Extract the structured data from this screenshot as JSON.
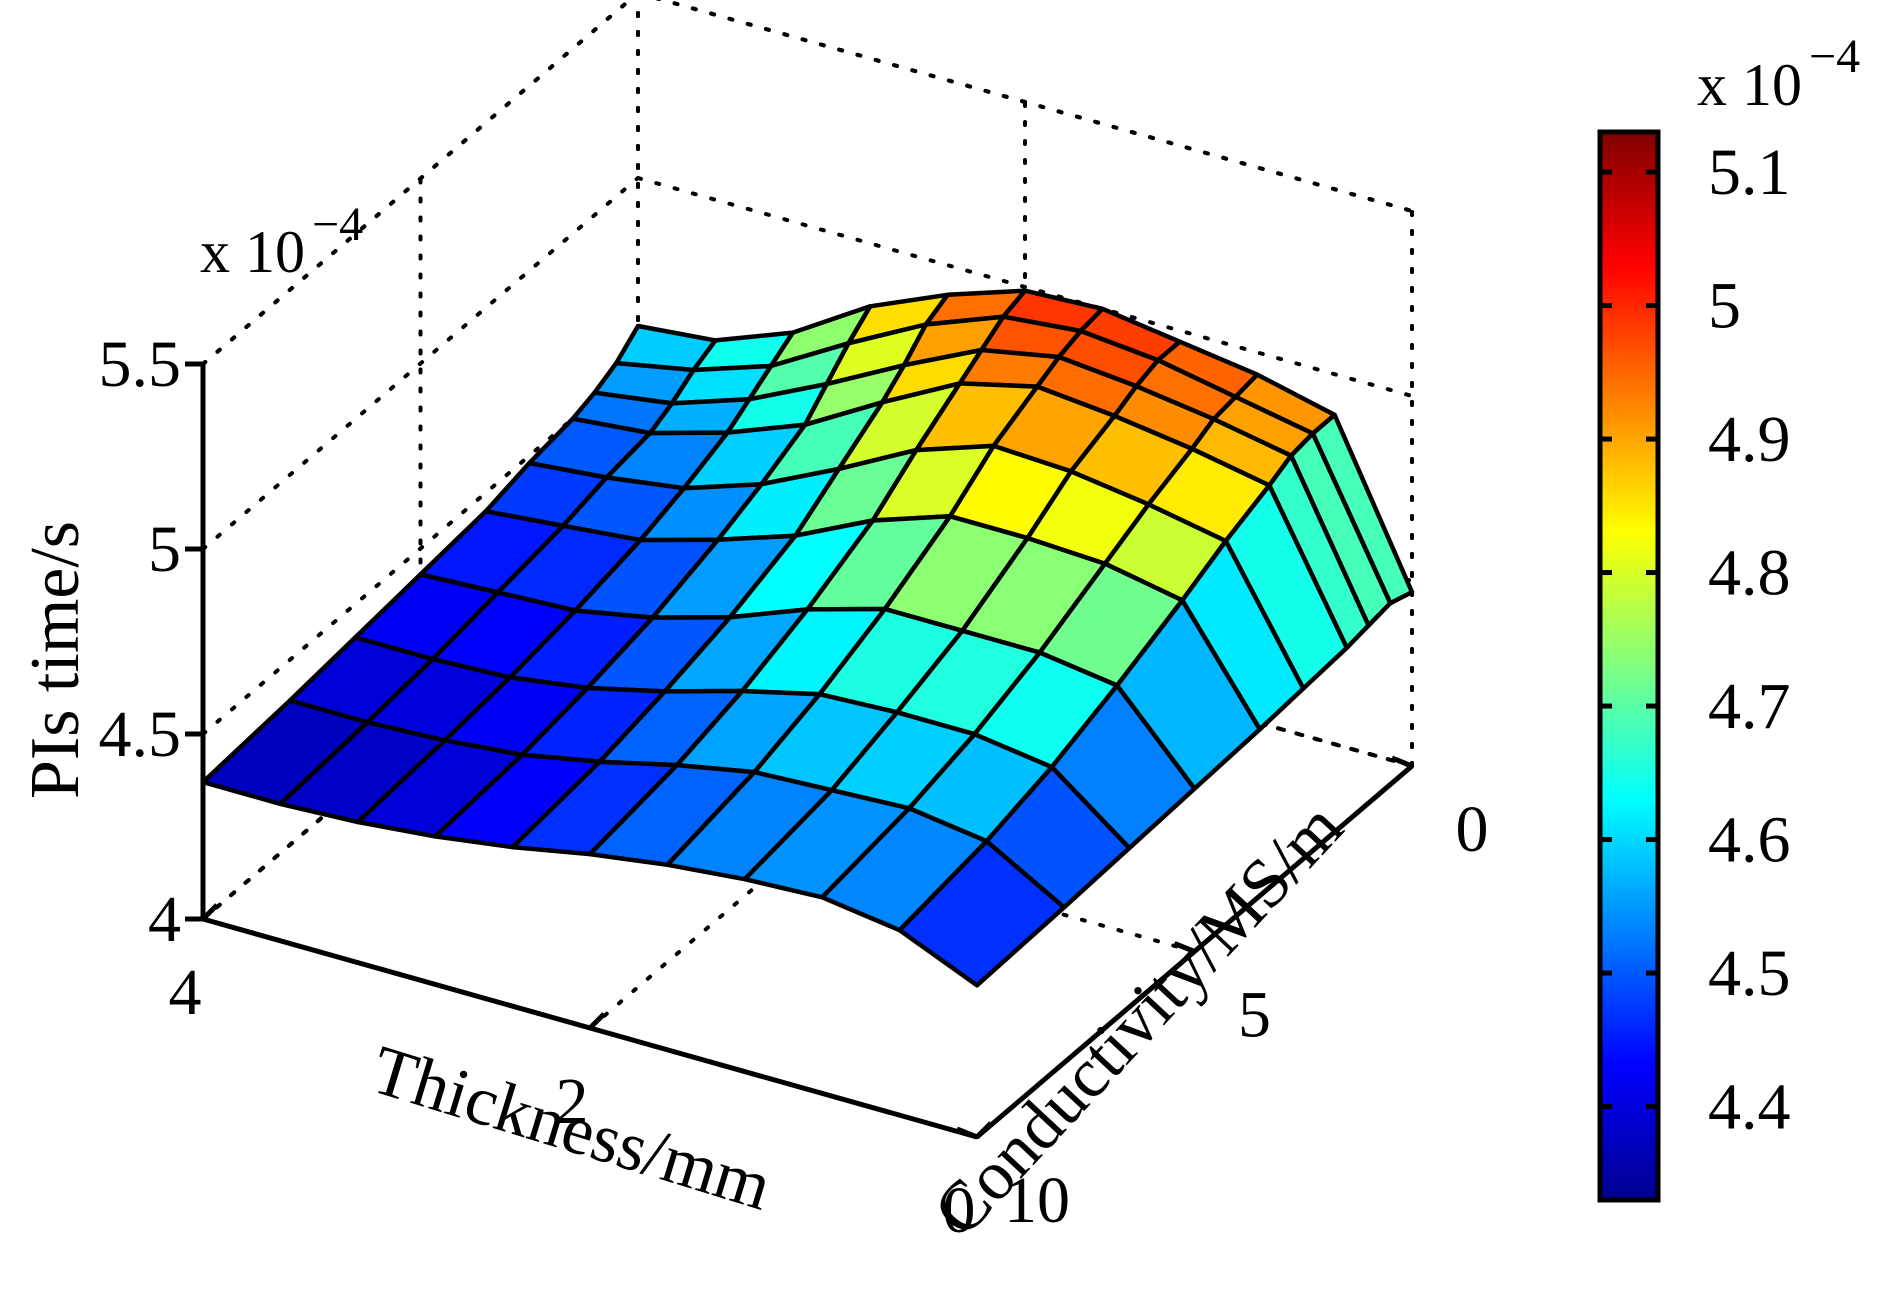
{
  "chart_data": {
    "type": "surface",
    "colormap": "jet",
    "x_axis": {
      "label": "Thickness/mm",
      "ticks": [
        0,
        2,
        4
      ],
      "tick_labels": [
        "0",
        "2",
        "4"
      ],
      "range": [
        0,
        4
      ]
    },
    "y_axis": {
      "label": "Conductivity/MS/m",
      "ticks": [
        0,
        5,
        10
      ],
      "tick_labels": [
        "0",
        "5",
        "10"
      ],
      "range": [
        0,
        10
      ]
    },
    "z_axis": {
      "label": "PIs time/s",
      "ticks": [
        4.0,
        4.5,
        5.0,
        5.5
      ],
      "tick_labels": [
        "4",
        "4.5",
        "5",
        "5.5"
      ],
      "range": [
        4.0,
        5.5
      ],
      "multiplier_base": "x 10",
      "multiplier_exp": "−4"
    },
    "colorbar": {
      "ticks": [
        4.4,
        4.5,
        4.6,
        4.7,
        4.8,
        4.9,
        5.0,
        5.1
      ],
      "tick_labels": [
        "4.4",
        "4.5",
        "4.6",
        "4.7",
        "4.8",
        "4.9",
        "5",
        "5.1"
      ],
      "range": [
        4.33,
        5.13
      ],
      "multiplier_base": "x 10",
      "multiplier_exp": "−4"
    },
    "thickness_values": [
      0,
      0.4,
      0.8,
      1.2,
      1.6,
      2.0,
      2.4,
      2.8,
      3.2,
      3.6,
      4.0
    ],
    "conductivity_values": [
      0.001,
      0.5,
      1,
      1.5,
      2.5,
      3.5,
      5,
      6.5,
      8,
      10
    ],
    "pis_time_values": [
      [
        4.47,
        4.89,
        4.94,
        4.97,
        5.0,
        4.99,
        4.92,
        4.83,
        4.7,
        4.62,
        4.6
      ],
      [
        4.49,
        4.89,
        4.93,
        4.97,
        4.99,
        4.97,
        4.89,
        4.78,
        4.66,
        4.59,
        4.55
      ],
      [
        4.48,
        4.88,
        4.92,
        4.95,
        4.97,
        4.93,
        4.83,
        4.72,
        4.62,
        4.55,
        4.52
      ],
      [
        4.47,
        4.85,
        4.89,
        4.92,
        4.94,
        4.89,
        4.78,
        4.66,
        4.58,
        4.52,
        4.5
      ],
      [
        4.46,
        4.8,
        4.84,
        4.87,
        4.88,
        4.81,
        4.7,
        4.6,
        4.53,
        4.5,
        4.48
      ],
      [
        4.45,
        4.74,
        4.78,
        4.79,
        4.79,
        4.72,
        4.62,
        4.55,
        4.49,
        4.47,
        4.45
      ],
      [
        4.44,
        4.66,
        4.69,
        4.69,
        4.69,
        4.63,
        4.55,
        4.49,
        4.45,
        4.44,
        4.43
      ],
      [
        4.43,
        4.59,
        4.62,
        4.62,
        4.61,
        4.56,
        4.5,
        4.45,
        4.42,
        4.41,
        4.41
      ],
      [
        4.42,
        4.54,
        4.57,
        4.56,
        4.55,
        4.51,
        4.46,
        4.42,
        4.4,
        4.39,
        4.39
      ],
      [
        4.41,
        4.5,
        4.53,
        4.52,
        4.5,
        4.47,
        4.43,
        4.4,
        4.38,
        4.37,
        4.37
      ]
    ]
  }
}
